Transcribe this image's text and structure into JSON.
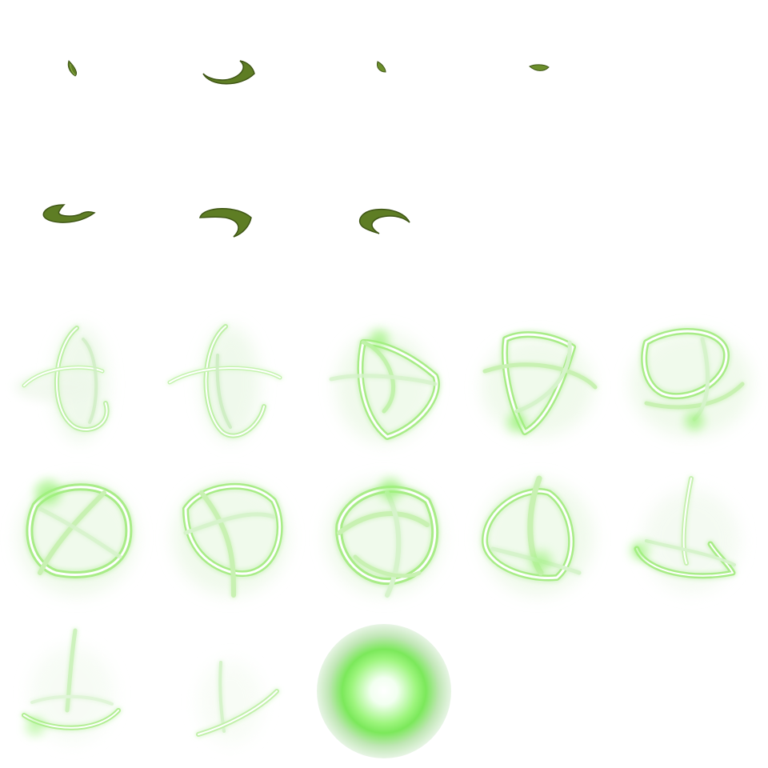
{
  "sheet": {
    "background": "#ffffff",
    "leaf_dark": "#4f6a1e",
    "leaf_mid": "#6c8f2c",
    "glow": "#9cf27a",
    "glow_core": "#ffffff"
  },
  "sprites": [
    {
      "id": "leaf-1",
      "kind": "leaf-small"
    },
    {
      "id": "leaf-2",
      "kind": "crescent"
    },
    {
      "id": "leaf-3",
      "kind": "leaf-small"
    },
    {
      "id": "leaf-4",
      "kind": "leaf-small"
    },
    {
      "id": "leaf-5",
      "kind": "crescent"
    },
    {
      "id": "leaf-6",
      "kind": "crescent"
    },
    {
      "id": "leaf-7",
      "kind": "crescent"
    },
    {
      "id": "ring-1",
      "kind": "energy-ring"
    },
    {
      "id": "ring-2",
      "kind": "energy-ring"
    },
    {
      "id": "ring-3",
      "kind": "energy-ring"
    },
    {
      "id": "ring-4",
      "kind": "energy-ring"
    },
    {
      "id": "ring-5",
      "kind": "energy-ring"
    },
    {
      "id": "ring-6",
      "kind": "energy-ring"
    },
    {
      "id": "ring-7",
      "kind": "energy-ring"
    },
    {
      "id": "ring-8",
      "kind": "energy-ring"
    },
    {
      "id": "ring-9",
      "kind": "energy-ring"
    },
    {
      "id": "ring-10",
      "kind": "energy-ring"
    },
    {
      "id": "ring-11",
      "kind": "energy-ring-fading"
    },
    {
      "id": "ring-12",
      "kind": "energy-ring-fading"
    },
    {
      "id": "orb-1",
      "kind": "glow-orb"
    }
  ]
}
